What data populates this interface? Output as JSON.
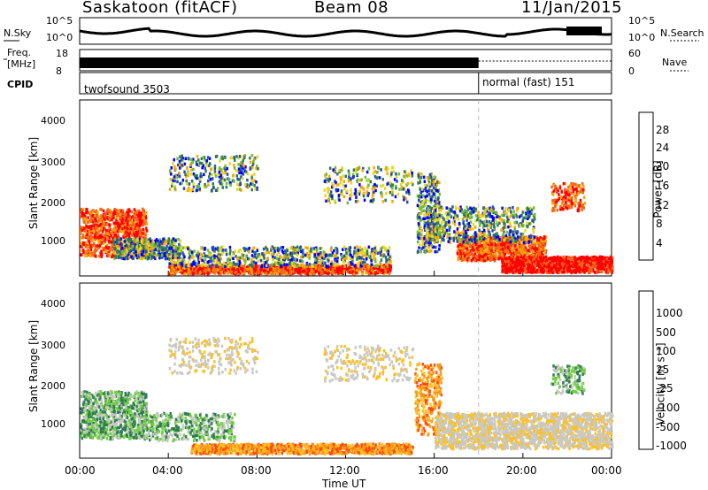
{
  "header": {
    "station": "Saskatoon (fitACF)",
    "beam": "Beam 08",
    "date": "11/Jan/2015"
  },
  "noise_panel": {
    "left_label": "N.Sky",
    "right_label": "N.Search",
    "left_ticks": [
      "10^5",
      "10^0"
    ],
    "right_ticks": [
      "10^5",
      "10^0"
    ]
  },
  "freq_panel": {
    "left_label_1": "Freq.",
    "left_label_2": "[MHz]",
    "left_ticks": [
      "18",
      "8"
    ],
    "right_label": "Nave",
    "right_ticks": [
      "60",
      "0"
    ]
  },
  "cpid_panel": {
    "label": "CPID",
    "mode_1": "twofsound 3503",
    "mode_2": "normal (fast) 151",
    "mode_change_time": "18:00"
  },
  "x_axis": {
    "label": "Time UT",
    "ticks": [
      "00:00",
      "04:00",
      "08:00",
      "12:00",
      "16:00",
      "20:00",
      "00:00"
    ]
  },
  "y_axis": {
    "label": "Slant Range [km]",
    "ticks": [
      "1000",
      "2000",
      "3000",
      "4000"
    ]
  },
  "chart_data": [
    {
      "type": "heatmap",
      "title": "",
      "xlabel": "",
      "ylabel": "Slant Range [km]",
      "ylim": [
        180,
        4600
      ],
      "xlim_hours": [
        0,
        24
      ],
      "colorbar": {
        "label": "Power [dB]",
        "ticks": [
          "28",
          "24",
          "20",
          "16",
          "12",
          "8",
          "4"
        ],
        "range": [
          0,
          30
        ],
        "colors": [
          "#ff0000",
          "#f06a1a",
          "#ffa500",
          "#e6d81e",
          "#6fbb3c",
          "#2e7d54",
          "#264fb2",
          "#0000ff"
        ]
      }
    },
    {
      "type": "heatmap",
      "title": "",
      "xlabel": "Time UT",
      "ylabel": "Slant Range [km]",
      "ylim": [
        180,
        4600
      ],
      "xlim_hours": [
        0,
        24
      ],
      "colorbar": {
        "label": "Velocity [m s⁻¹]",
        "ticks": [
          "1000",
          "500",
          "100",
          "25",
          "-25",
          "-100",
          "-500",
          "-1000"
        ],
        "colors": [
          "#1e4fb8",
          "#2e7d54",
          "#6fcf3c",
          "#c8c8c4",
          "#ffc020",
          "#f59a1a",
          "#ff4a10",
          "#ff0000"
        ]
      }
    }
  ]
}
